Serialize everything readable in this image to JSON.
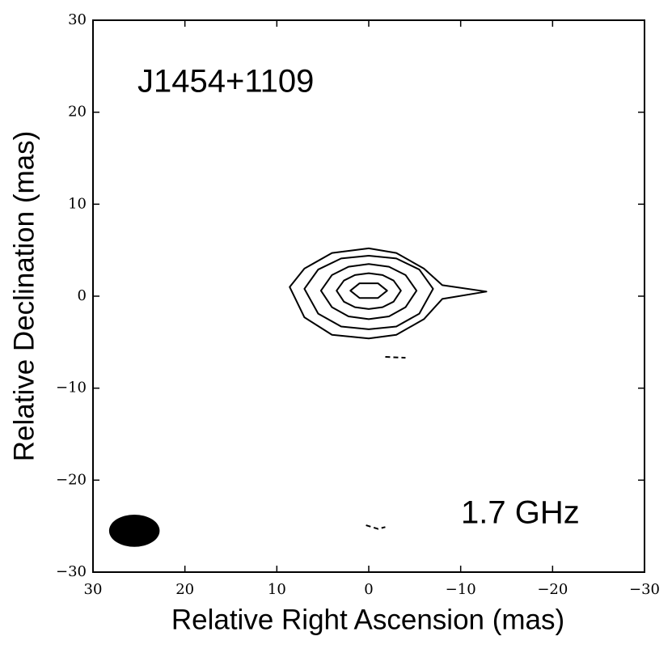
{
  "chart_data": {
    "type": "contour",
    "title": "J1454+1109",
    "annotation": "1.7 GHz",
    "x_label": "Relative Right Ascension (mas)",
    "y_label": "Relative Declination (mas)",
    "xlim": [
      30,
      -30
    ],
    "ylim": [
      -30,
      30
    ],
    "xticks": [
      30,
      20,
      10,
      0,
      {
        "value": -10,
        "label": "−10"
      },
      {
        "value": -20,
        "label": "−20"
      },
      {
        "value": -30,
        "label": "−30"
      }
    ],
    "yticks": [
      {
        "value": -30,
        "label": "−30"
      },
      {
        "value": -20,
        "label": "−20"
      },
      {
        "value": -10,
        "label": "−10"
      },
      0,
      10,
      20,
      30
    ],
    "color": "#000000",
    "contours": [
      {
        "x": [
          8.6,
          7,
          4,
          0,
          -3,
          -6,
          -8,
          -12.8,
          -8,
          -6,
          -3,
          0,
          4,
          7
        ],
        "y": [
          1,
          3,
          4.7,
          5.2,
          4.7,
          3,
          1.2,
          0.5,
          -0.3,
          -2.5,
          -4.2,
          -4.6,
          -4.2,
          -2.3
        ]
      },
      {
        "x": [
          7,
          5.5,
          3,
          0,
          -3,
          -5.5,
          -7,
          -5.5,
          -3,
          0,
          3,
          5.5
        ],
        "y": [
          0.8,
          2.9,
          4.1,
          4.4,
          4.1,
          2.9,
          0.8,
          -1.9,
          -3.3,
          -3.6,
          -3.3,
          -1.9
        ]
      },
      {
        "x": [
          5.2,
          4,
          2.2,
          0,
          -2.2,
          -4,
          -5.2,
          -4,
          -2.2,
          0,
          2.2,
          4
        ],
        "y": [
          0.6,
          2.3,
          3.2,
          3.5,
          3.2,
          2.3,
          0.6,
          -1.2,
          -2.2,
          -2.5,
          -2.2,
          -1.2
        ]
      },
      {
        "x": [
          3.5,
          2.7,
          1.5,
          0,
          -1.5,
          -2.7,
          -3.5,
          -2.7,
          -1.5,
          0,
          1.5,
          2.7
        ],
        "y": [
          0.6,
          1.7,
          2.3,
          2.5,
          2.3,
          1.7,
          0.6,
          -0.6,
          -1.2,
          -1.4,
          -1.2,
          -0.6
        ]
      },
      {
        "x": [
          2,
          1,
          -1,
          -2,
          -1,
          1
        ],
        "y": [
          0.6,
          1.4,
          1.4,
          0.6,
          -0.2,
          -0.2
        ]
      }
    ],
    "negative_contours": [
      {
        "x": [
          -1.8,
          -4
        ],
        "y": [
          -6.6,
          -6.7
        ]
      },
      {
        "x": [
          0.3,
          -1,
          -1.8
        ],
        "y": [
          -24.9,
          -25.3,
          -25.1
        ]
      }
    ],
    "beam": {
      "x": 25.5,
      "y": -25.5,
      "width": 5.5,
      "height": 3.5
    }
  }
}
